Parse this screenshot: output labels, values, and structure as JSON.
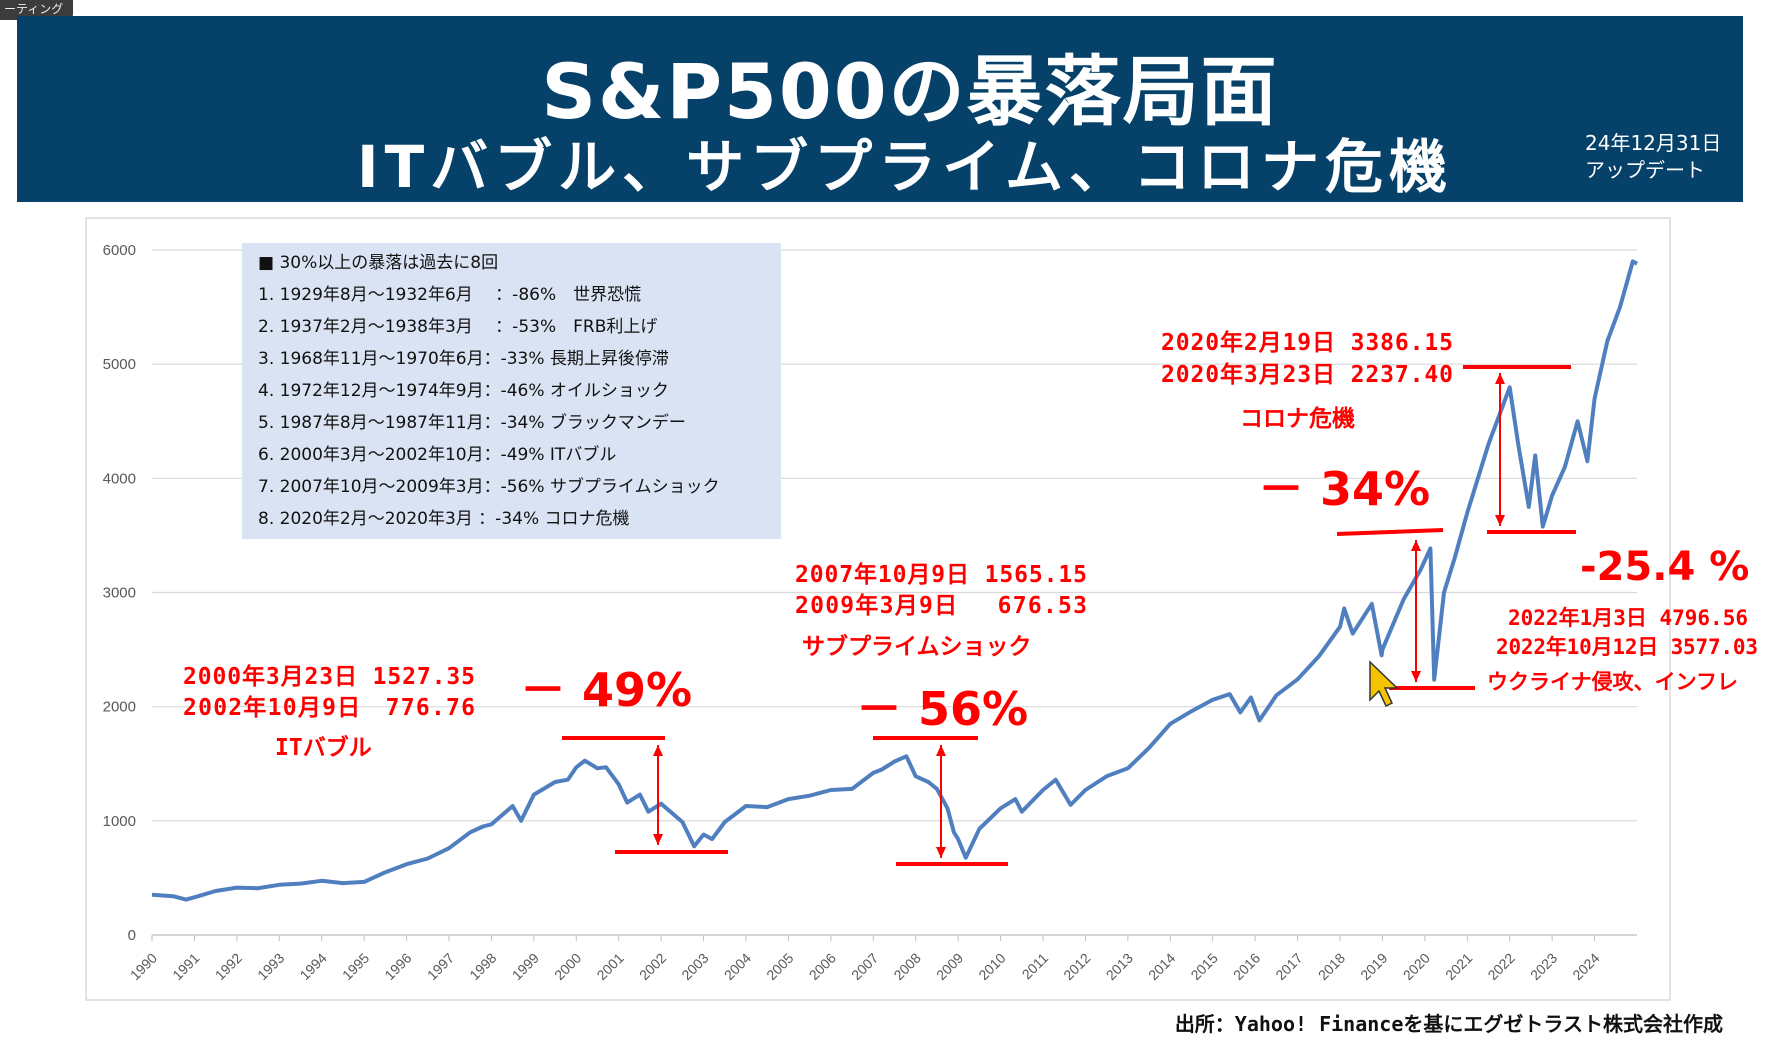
{
  "corner_tab": "ーティング",
  "header": {
    "title": "S&P500の暴落局面",
    "subtitle": "ITバブル、サブプライム、コロナ危機",
    "update_line1": "24年12月31日",
    "update_line2": "アップデート"
  },
  "source": "出所：Yahoo! Financeを基にエグゼトラスト株式会社作成",
  "legend": {
    "title": "■ 30%以上の暴落は過去に8回",
    "items": [
      "1. 1929年8月～1932年6月　 ：-86%　世界恐慌",
      "2. 1937年2月～1938年3月　 ：-53%　FRB利上げ",
      "3. 1968年11月～1970年6月：-33% 長期上昇後停滞",
      "4. 1972年12月～1974年9月：-46% オイルショック",
      "5. 1987年8月～1987年11月：-34% ブラックマンデー",
      "6. 2000年3月～2002年10月：-49% ITバブル",
      "7. 2007年10月～2009年3月：-56% サブプライムショック",
      "8. 2020年2月～2020年3月 ：-34% コロナ危機"
    ]
  },
  "annotations": {
    "it": {
      "l1": "2000年3月23日 1527.35",
      "l2": "2002年10月9日　776.76",
      "name": "ITバブル",
      "pct": "－ 49%"
    },
    "sub": {
      "l1": "2007年10月9日 1565.15",
      "l2": "2009年3月9日　 676.53",
      "name": "サブプライムショック",
      "pct": "－ 56%"
    },
    "covid": {
      "l1": "2020年2月19日 3386.15",
      "l2": "2020年3月23日 2237.40",
      "name": "コロナ危機",
      "pct": "－ 34%"
    },
    "infl": {
      "l1": "2022年1月3日 4796.56",
      "l2": "2022年10月12日 3577.03",
      "name": "ウクライナ侵攻、インフレ",
      "pct": "-25.4 %"
    }
  },
  "colors": {
    "banner": "#054169",
    "series": "#4f7fbf",
    "annotation": "#ff0000",
    "legend_bg": "#dae3f3"
  },
  "chart_data": {
    "type": "line",
    "title": "",
    "xlabel": "",
    "ylabel": "",
    "ylim": [
      0,
      6000
    ],
    "yticks": [
      0,
      1000,
      2000,
      3000,
      4000,
      5000,
      6000
    ],
    "xticks": [
      "1990",
      "1991",
      "1992",
      "1993",
      "1994",
      "1995",
      "1996",
      "1997",
      "1998",
      "1999",
      "2000",
      "2001",
      "2002",
      "2003",
      "2004",
      "2005",
      "2006",
      "2007",
      "2008",
      "2009",
      "2010",
      "2011",
      "2012",
      "2013",
      "2014",
      "2015",
      "2016",
      "2017",
      "2018",
      "2019",
      "2020",
      "2021",
      "2022",
      "2023",
      "2024"
    ],
    "grid": true,
    "series": [
      {
        "x": [
          1990.0,
          1990.5,
          1990.8,
          1991.0,
          1991.5,
          1992.0,
          1992.5,
          1993.0,
          1993.5,
          1994.0,
          1994.5,
          1995.0,
          1995.5,
          1996.0,
          1996.5,
          1997.0,
          1997.5,
          1997.8,
          1998.0,
          1998.5,
          1998.7,
          1999.0,
          1999.5,
          1999.8,
          2000.0,
          2000.2,
          2000.5,
          2000.7,
          2001.0,
          2001.2,
          2001.5,
          2001.7,
          2002.0,
          2002.5,
          2002.78,
          2003.0,
          2003.2,
          2003.5,
          2004.0,
          2004.5,
          2005.0,
          2005.5,
          2006.0,
          2006.5,
          2007.0,
          2007.2,
          2007.5,
          2007.78,
          2008.0,
          2008.3,
          2008.5,
          2008.75,
          2008.9,
          2009.0,
          2009.18,
          2009.5,
          2010.0,
          2010.35,
          2010.5,
          2011.0,
          2011.3,
          2011.65,
          2012.0,
          2012.5,
          2013.0,
          2013.5,
          2014.0,
          2014.5,
          2015.0,
          2015.4,
          2015.65,
          2015.9,
          2016.1,
          2016.5,
          2017.0,
          2017.5,
          2018.0,
          2018.1,
          2018.3,
          2018.75,
          2018.98,
          2019.0,
          2019.5,
          2019.9,
          2020.13,
          2020.22,
          2020.45,
          2020.7,
          2021.0,
          2021.5,
          2022.0,
          2022.2,
          2022.45,
          2022.6,
          2022.78,
          2023.0,
          2023.3,
          2023.6,
          2023.83,
          2024.0,
          2024.3,
          2024.6,
          2024.9,
          2025.0
        ],
        "y": [
          353,
          340,
          310,
          330,
          385,
          415,
          410,
          440,
          450,
          475,
          455,
          465,
          550,
          620,
          670,
          760,
          900,
          950,
          970,
          1130,
          1000,
          1230,
          1340,
          1360,
          1469,
          1527,
          1460,
          1470,
          1320,
          1160,
          1230,
          1080,
          1150,
          990,
          777,
          880,
          840,
          990,
          1130,
          1120,
          1190,
          1220,
          1270,
          1280,
          1420,
          1450,
          1520,
          1565,
          1390,
          1340,
          1280,
          1110,
          900,
          840,
          677,
          930,
          1110,
          1190,
          1080,
          1270,
          1360,
          1140,
          1270,
          1390,
          1460,
          1640,
          1850,
          1960,
          2060,
          2110,
          1950,
          2080,
          1880,
          2100,
          2240,
          2440,
          2700,
          2860,
          2640,
          2900,
          2450,
          2500,
          2940,
          3200,
          3386,
          2237,
          3000,
          3300,
          3700,
          4300,
          4797,
          4300,
          3750,
          4200,
          3577,
          3850,
          4100,
          4500,
          4150,
          4700,
          5200,
          5500,
          5900,
          5880
        ]
      }
    ]
  }
}
